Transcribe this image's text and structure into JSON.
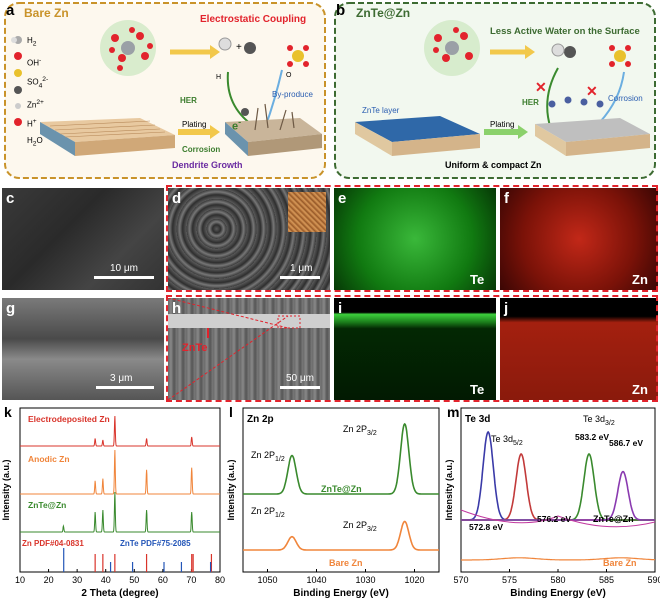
{
  "colors": {
    "orange_frame": "#c9932a",
    "green_frame": "#3d6b32",
    "red_text": "#e2232c",
    "green_text": "#3c7d2e",
    "purple_text": "#6a2ba1",
    "blue_text": "#2a5db0",
    "xrd_red": "#d9342b",
    "xrd_orange": "#f0853b",
    "xrd_green": "#3a8a2e",
    "xrd_blue": "#2456b8"
  },
  "panel_a": {
    "label": "a",
    "title": "Bare Zn",
    "subtitle": "Electrostatic Coupling",
    "legend": [
      {
        "sym": "H",
        "sub": "2",
        "sup": ""
      },
      {
        "sym": "OH",
        "sub": "",
        "sup": "-"
      },
      {
        "sym": "SO",
        "sub": "4",
        "sup": "2-"
      },
      {
        "sym": "Zn",
        "sub": "",
        "sup": "2+"
      },
      {
        "sym": "H",
        "sub": "",
        "sup": "+"
      },
      {
        "sym": "H",
        "sub": "2",
        "sup": "O",
        "plain": true
      }
    ],
    "hydrogen": "H",
    "oxygen": "O",
    "electron": "e",
    "electron_sup": "-",
    "her": "HER",
    "byproduct": "By-produce",
    "corrosion": "Corrosion",
    "plating": "Plating",
    "dendrite": "Dendrite Growth"
  },
  "panel_b": {
    "label": "b",
    "title": "ZnTe@Zn",
    "subtitle": "Less Active Water on the Surface",
    "znte_layer": "ZnTe layer",
    "plating": "Plating",
    "her": "HER",
    "corrosion": "Corrosion",
    "uniform": "Uniform & compact Zn"
  },
  "sem": {
    "c": {
      "label": "c",
      "scale": "10 μm"
    },
    "d": {
      "label": "d",
      "scale": "1 μm"
    },
    "e": {
      "label": "e",
      "element": "Te"
    },
    "f": {
      "label": "f",
      "element": "Zn"
    },
    "g": {
      "label": "g",
      "scale": "3 μm"
    },
    "h": {
      "label": "h",
      "scale": "50 μm",
      "annot": "ZnTe"
    },
    "i": {
      "label": "i",
      "element": "Te"
    },
    "j": {
      "label": "j",
      "element": "Zn"
    }
  },
  "chart_data": [
    {
      "type": "line",
      "label": "k",
      "xlabel": "2 Theta (degree)",
      "ylabel": "Intensity (a.u.)",
      "xlim": [
        10,
        80
      ],
      "xticks": [
        10,
        20,
        30,
        40,
        50,
        60,
        70,
        80
      ],
      "series": [
        {
          "name": "Electrodeposited Zn",
          "peaks": [
            [
              36.3,
              0.25
            ],
            [
              39.0,
              0.2
            ],
            [
              43.2,
              1.0
            ],
            [
              54.3,
              0.25
            ],
            [
              70.1,
              0.3
            ]
          ]
        },
        {
          "name": "Anodic Zn",
          "peaks": [
            [
              36.3,
              0.3
            ],
            [
              39.0,
              0.35
            ],
            [
              43.2,
              1.0
            ],
            [
              54.3,
              0.55
            ],
            [
              70.1,
              0.6
            ]
          ]
        },
        {
          "name": "ZnTe@Zn",
          "peaks": [
            [
              25.2,
              0.15
            ],
            [
              36.3,
              0.5
            ],
            [
              39.0,
              0.55
            ],
            [
              43.2,
              1.0
            ],
            [
              54.3,
              0.55
            ],
            [
              70.1,
              0.5
            ]
          ]
        }
      ],
      "ref_labels": [
        "Zn PDF#04-0831",
        "ZnTe PDF#75-2085"
      ],
      "ref_zn": [
        36.3,
        39.0,
        43.2,
        54.3,
        70.1,
        70.6,
        77.0
      ],
      "ref_znte": [
        25.3,
        41.7,
        49.4,
        60.4,
        66.5,
        76.7
      ]
    },
    {
      "type": "line",
      "label": "l",
      "title": "Zn 2p",
      "xlabel": "Binding Energy (eV)",
      "ylabel": "Intensity (a.u.)",
      "xlim": [
        1055,
        1015
      ],
      "xticks": [
        1050,
        1040,
        1030,
        1020
      ],
      "series": [
        {
          "name": "ZnTe@Zn",
          "peaks": [
            [
              1045.0,
              0.55
            ],
            [
              1022.0,
              1.0
            ]
          ]
        },
        {
          "name": "Bare Zn",
          "peaks": [
            [
              1045.0,
              0.35
            ],
            [
              1022.0,
              0.75
            ]
          ]
        }
      ],
      "peak_labels": [
        {
          "main": "Zn 2P",
          "sub": "1/2"
        },
        {
          "main": "Zn 2P",
          "sub": "3/2"
        }
      ]
    },
    {
      "type": "line",
      "label": "m",
      "title": "Te 3d",
      "xlabel": "Binding Energy (eV)",
      "ylabel": "Intensity (a.u.)",
      "xlim": [
        570,
        590
      ],
      "xticks": [
        570,
        575,
        580,
        585,
        590
      ],
      "series": [
        {
          "name": "ZnTe@Zn",
          "peaks": [
            [
              572.8,
              1.0
            ],
            [
              576.2,
              0.75
            ],
            [
              583.2,
              0.75
            ],
            [
              586.7,
              0.55
            ]
          ]
        },
        {
          "name": "Bare Zn",
          "peaks": [
            [
              576.0,
              0.1
            ],
            [
              586.5,
              0.1
            ]
          ]
        }
      ],
      "peak_labels": [
        {
          "main": "Te 3d",
          "sub": "5/2"
        },
        {
          "main": "Te 3d",
          "sub": "3/2"
        }
      ],
      "energy_labels": [
        "583.2 eV",
        "586.7 eV",
        "572.8 eV",
        "576.2 eV"
      ]
    }
  ]
}
